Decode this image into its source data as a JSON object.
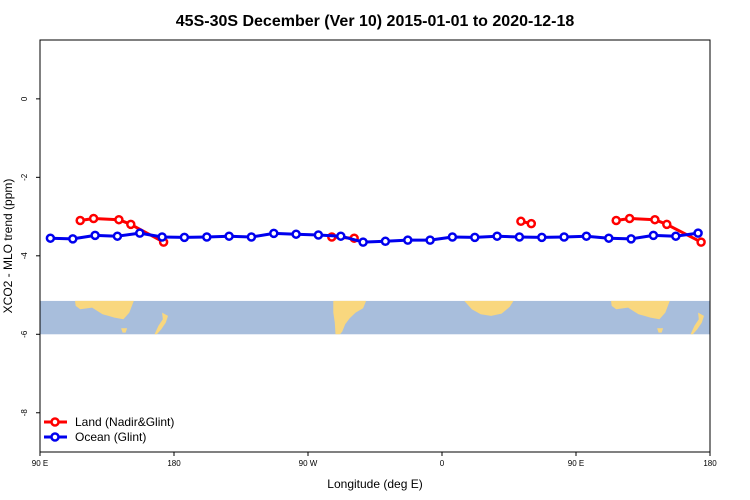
{
  "chart_data": {
    "type": "line",
    "title": "45S-30S December (Ver 10)   2015-01-01 to 2020-12-18",
    "xlabel": "Longitude (deg E)",
    "ylabel": "XCO2 - MLO trend (ppm)",
    "xlim": [
      90,
      540
    ],
    "ylim": [
      -9.0,
      1.5
    ],
    "x_ticks": [
      {
        "value": 90,
        "label": "90 E"
      },
      {
        "value": 180,
        "label": "180"
      },
      {
        "value": 270,
        "label": "90 W"
      },
      {
        "value": 360,
        "label": "0"
      },
      {
        "value": 450,
        "label": "90 E"
      },
      {
        "value": 540,
        "label": "180"
      }
    ],
    "y_ticks": [
      {
        "value": 0,
        "label": "0"
      },
      {
        "value": -2,
        "label": "-2"
      },
      {
        "value": -4,
        "label": "-4"
      },
      {
        "value": -6,
        "label": "-6"
      },
      {
        "value": -8,
        "label": "-8"
      }
    ],
    "legend_position": "bottom-left",
    "grid": false,
    "map_band": {
      "ylim": [
        -6.0,
        -5.15
      ],
      "ocean_color": "#a8bedc",
      "land_color": "#f9d77e"
    },
    "series": [
      {
        "name": "Land (Nadir&Glint)",
        "color": "#ff0000",
        "segments": [
          {
            "x": [
              117,
              126,
              143,
              151,
              173
            ],
            "y": [
              -3.1,
              -3.05,
              -3.08,
              -3.2,
              -3.65
            ]
          },
          {
            "x": [
              286,
              301
            ],
            "y": [
              -3.52,
              -3.55
            ]
          },
          {
            "x": [
              413,
              420
            ],
            "y": [
              -3.12,
              -3.18
            ]
          },
          {
            "x": [
              477,
              486,
              503,
              511,
              534
            ],
            "y": [
              -3.1,
              -3.05,
              -3.08,
              -3.2,
              -3.65
            ]
          }
        ]
      },
      {
        "name": "Ocean (Glint)",
        "color": "#0000ee",
        "segments": [
          {
            "x": [
              97,
              112,
              127,
              142,
              157,
              172,
              187,
              202,
              217,
              232,
              247,
              262,
              277,
              292,
              307,
              322,
              337,
              352,
              367,
              382,
              397,
              412,
              427,
              442,
              457,
              472,
              487,
              502,
              517,
              532
            ],
            "y": [
              -3.55,
              -3.57,
              -3.48,
              -3.5,
              -3.42,
              -3.52,
              -3.53,
              -3.52,
              -3.5,
              -3.52,
              -3.43,
              -3.45,
              -3.47,
              -3.5,
              -3.65,
              -3.63,
              -3.6,
              -3.6,
              -3.52,
              -3.53,
              -3.5,
              -3.52,
              -3.53,
              -3.52,
              -3.5,
              -3.55,
              -3.57,
              -3.48,
              -3.5,
              -3.42
            ]
          }
        ]
      }
    ]
  }
}
